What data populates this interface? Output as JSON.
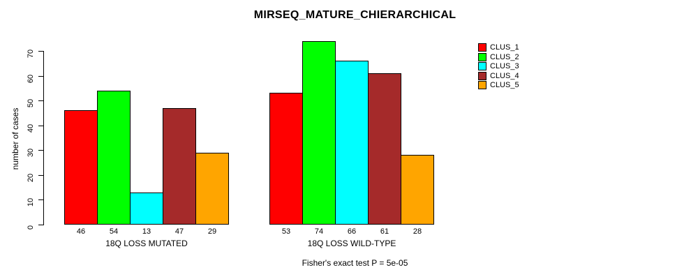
{
  "figure": {
    "background": "#FFFFFF",
    "axis_color": "#000000"
  },
  "chart_data": {
    "type": "bar",
    "title": "MIRSEQ_MATURE_CHIERARCHICAL",
    "ylabel": "number of cases",
    "xlabel": "",
    "categories": [
      "18Q LOSS MUTATED",
      "18Q LOSS WILD-TYPE"
    ],
    "series": [
      {
        "name": "CLUS_1",
        "color": "#FF0000",
        "values": [
          46,
          53
        ]
      },
      {
        "name": "CLUS_2",
        "color": "#00FF00",
        "values": [
          54,
          74
        ]
      },
      {
        "name": "CLUS_3",
        "color": "#00FFFF",
        "values": [
          13,
          66
        ]
      },
      {
        "name": "CLUS_4",
        "color": "#A52A2A",
        "values": [
          47,
          61
        ]
      },
      {
        "name": "CLUS_5",
        "color": "#FFA500",
        "values": [
          29,
          28
        ]
      }
    ],
    "bar_value_labels": [
      [
        46,
        54,
        13,
        47,
        29
      ],
      [
        53,
        74,
        66,
        61,
        28
      ]
    ],
    "yticks": [
      0,
      10,
      20,
      30,
      40,
      50,
      60,
      70
    ],
    "ylim": [
      0,
      70
    ],
    "grid": false,
    "legend_position": "top-right-inside",
    "annotation": "Fisher's exact test P = 5e-05"
  }
}
